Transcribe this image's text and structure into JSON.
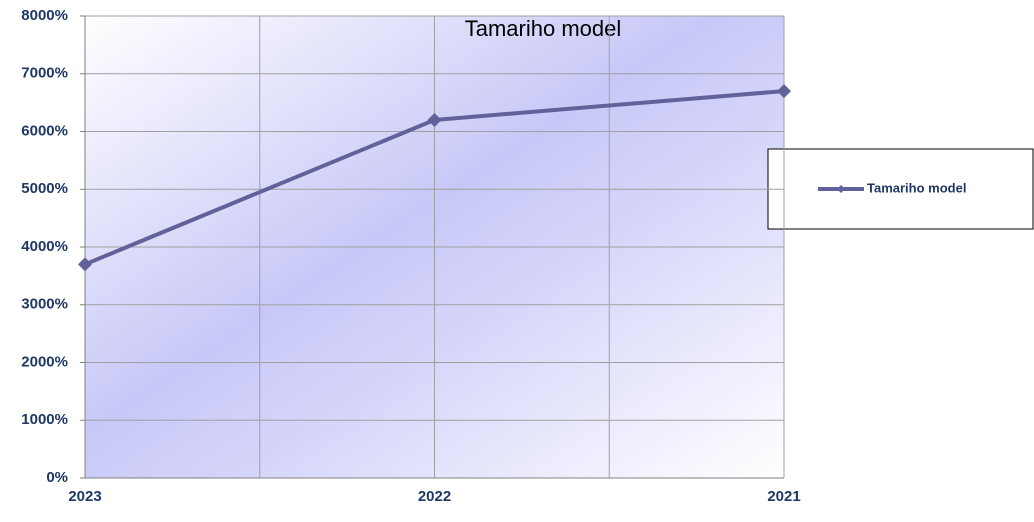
{
  "chart_data": {
    "type": "line",
    "title": "Tamariho model",
    "categories": [
      "2023",
      "2022",
      "2021"
    ],
    "series": [
      {
        "name": "Tamariho model",
        "color": "#62629a",
        "values": [
          3700,
          6200,
          6700
        ]
      }
    ],
    "ylim": [
      0,
      8000
    ],
    "yticks": [
      {
        "value": 0,
        "label": "0%"
      },
      {
        "value": 1000,
        "label": "1000%"
      },
      {
        "value": 2000,
        "label": "2000%"
      },
      {
        "value": 3000,
        "label": "3000%"
      },
      {
        "value": 4000,
        "label": "4000%"
      },
      {
        "value": 5000,
        "label": "5000%"
      },
      {
        "value": 6000,
        "label": "6000%"
      },
      {
        "value": 7000,
        "label": "7000%"
      },
      {
        "value": 8000,
        "label": "8000%"
      }
    ],
    "grid": true,
    "legend": "right"
  }
}
